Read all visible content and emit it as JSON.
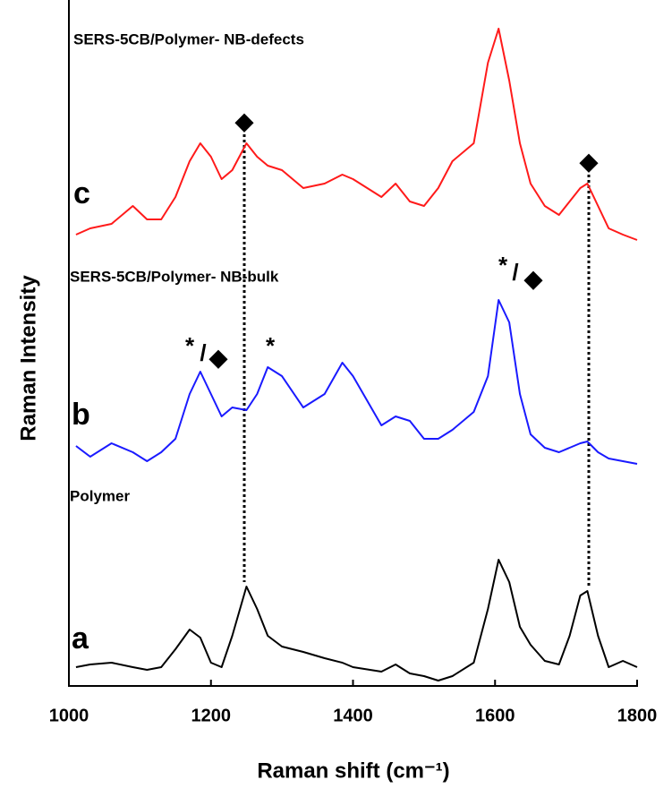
{
  "chart_data": {
    "type": "line",
    "xlabel": "Raman shift (cm⁻¹)",
    "ylabel": "Raman Intensity",
    "annotations": [
      "SERS-5CB/Polymer- NB-defects",
      "c",
      "SERS-5CB/Polymer- NB-bulk",
      "b",
      "Polymer",
      "a",
      "◆",
      "◆",
      "*",
      "/",
      "◆",
      "*",
      "*",
      "/",
      "◆"
    ],
    "x": [
      1010,
      1030,
      1060,
      1090,
      1110,
      1130,
      1150,
      1170,
      1185,
      1200,
      1215,
      1230,
      1250,
      1265,
      1280,
      1300,
      1330,
      1360,
      1385,
      1400,
      1440,
      1460,
      1480,
      1500,
      1520,
      1540,
      1570,
      1590,
      1605,
      1620,
      1635,
      1650,
      1670,
      1690,
      1705,
      1720,
      1730,
      1745,
      1760,
      1780,
      1800
    ],
    "series": [
      {
        "color": "#000000",
        "values": [
          21,
          24,
          26,
          21,
          18,
          21,
          41,
          63,
          54,
          26,
          21,
          56,
          111,
          86,
          56,
          44,
          38,
          31,
          26,
          21,
          16,
          24,
          14,
          11,
          6,
          11,
          26,
          86,
          141,
          116,
          66,
          46,
          28,
          24,
          56,
          101,
          106,
          56,
          21,
          28,
          21
        ]
      },
      {
        "color": "#1a1aff",
        "values": [
          268,
          256,
          271,
          261,
          251,
          261,
          276,
          326,
          351,
          326,
          301,
          311,
          308,
          326,
          356,
          346,
          311,
          326,
          361,
          346,
          291,
          301,
          296,
          276,
          276,
          286,
          306,
          346,
          431,
          406,
          326,
          281,
          266,
          261,
          266,
          271,
          273,
          261,
          254,
          251,
          248
        ]
      },
      {
        "color": "#ff1a1a",
        "values": [
          504,
          511,
          516,
          536,
          521,
          521,
          546,
          586,
          606,
          591,
          566,
          576,
          606,
          591,
          581,
          576,
          556,
          561,
          571,
          566,
          546,
          561,
          541,
          536,
          556,
          586,
          606,
          696,
          734,
          676,
          606,
          561,
          536,
          526,
          541,
          556,
          561,
          536,
          511,
          504,
          498
        ]
      }
    ],
    "xlim": [
      1000,
      1800
    ],
    "xticks": [
      1000,
      1200,
      1400,
      1600,
      1800
    ],
    "ylim": [
      0,
      766
    ]
  }
}
